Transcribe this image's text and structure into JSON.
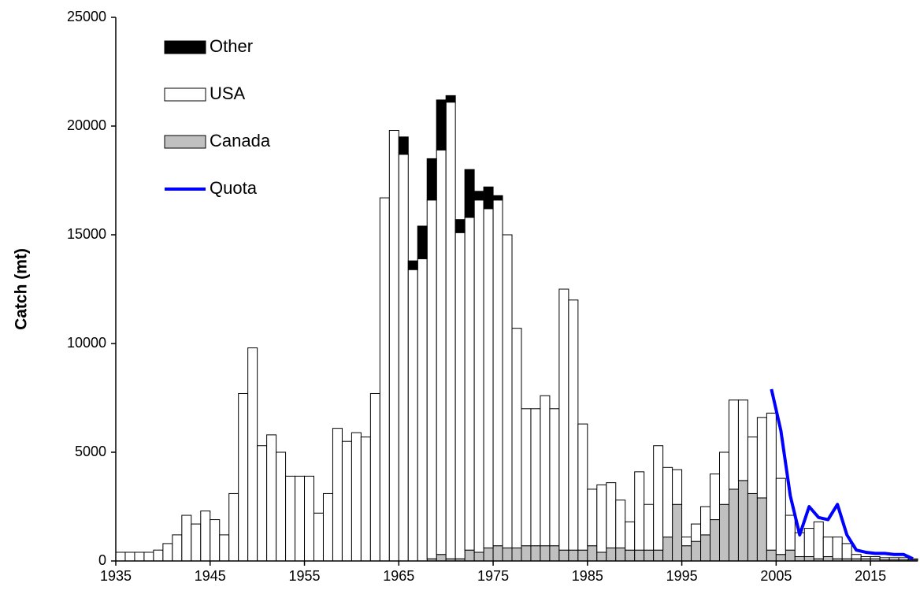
{
  "chart_data": {
    "type": "stacked-bar-line",
    "y_label": "Catch (mt)",
    "x": [
      1935,
      1936,
      1937,
      1938,
      1939,
      1940,
      1941,
      1942,
      1943,
      1944,
      1945,
      1946,
      1947,
      1948,
      1949,
      1950,
      1951,
      1952,
      1953,
      1954,
      1955,
      1956,
      1957,
      1958,
      1959,
      1960,
      1961,
      1962,
      1963,
      1964,
      1965,
      1966,
      1967,
      1968,
      1969,
      1970,
      1971,
      1972,
      1973,
      1974,
      1975,
      1976,
      1977,
      1978,
      1979,
      1980,
      1981,
      1982,
      1983,
      1984,
      1985,
      1986,
      1987,
      1988,
      1989,
      1990,
      1991,
      1992,
      1993,
      1994,
      1995,
      1996,
      1997,
      1998,
      1999,
      2000,
      2001,
      2002,
      2003,
      2004,
      2005,
      2006,
      2007,
      2008,
      2009,
      2010,
      2011,
      2012,
      2013,
      2014,
      2015,
      2016,
      2017,
      2018,
      2019
    ],
    "xlim": [
      1934.5,
      2019.5
    ],
    "xticks": [
      1935,
      1945,
      1955,
      1965,
      1975,
      1985,
      1995,
      2005,
      2015
    ],
    "ylim": [
      0,
      25000
    ],
    "yticks": [
      0,
      5000,
      10000,
      15000,
      20000,
      25000
    ],
    "legend": "top-left",
    "series": [
      {
        "name": "Canada",
        "color": "#c0c0c0",
        "kind": "bar",
        "values": [
          0,
          0,
          0,
          0,
          0,
          0,
          0,
          0,
          0,
          0,
          0,
          0,
          0,
          0,
          0,
          0,
          0,
          0,
          0,
          0,
          0,
          0,
          0,
          0,
          0,
          0,
          0,
          0,
          0,
          0,
          0,
          0,
          0,
          100,
          300,
          100,
          100,
          500,
          400,
          600,
          700,
          600,
          600,
          700,
          700,
          700,
          700,
          500,
          500,
          500,
          700,
          400,
          600,
          600,
          500,
          500,
          500,
          500,
          1100,
          2600,
          700,
          900,
          1200,
          1900,
          2600,
          3300,
          3700,
          3100,
          2900,
          500,
          300,
          500,
          200,
          200,
          100,
          200,
          100,
          100,
          100,
          100,
          100,
          50,
          50,
          50,
          50
        ]
      },
      {
        "name": "USA",
        "color": "#ffffff",
        "kind": "bar",
        "values": [
          400,
          400,
          400,
          400,
          500,
          800,
          1200,
          2100,
          1700,
          2300,
          1900,
          1200,
          3100,
          7700,
          9800,
          5300,
          5800,
          5000,
          3900,
          3900,
          3900,
          2200,
          3100,
          6100,
          5500,
          5900,
          5700,
          7700,
          16700,
          19800,
          18700,
          13400,
          13900,
          16500,
          18600,
          21000,
          15000,
          15300,
          16200,
          15600,
          15900,
          14400,
          10100,
          6300,
          6300,
          6900,
          6300,
          12000,
          11500,
          5800,
          2600,
          3100,
          3000,
          2200,
          1300,
          3600,
          2100,
          4800,
          3200,
          1600,
          400,
          800,
          1300,
          2100,
          2400,
          4100,
          3700,
          2600,
          3700,
          6300,
          3500,
          1600,
          1100,
          1300,
          1700,
          900,
          1000,
          700,
          200,
          100,
          100,
          100,
          100,
          100,
          50
        ]
      },
      {
        "name": "Other",
        "color": "#000000",
        "kind": "bar",
        "values": [
          0,
          0,
          0,
          0,
          0,
          0,
          0,
          0,
          0,
          0,
          0,
          0,
          0,
          0,
          0,
          0,
          0,
          0,
          0,
          0,
          0,
          0,
          0,
          0,
          0,
          0,
          0,
          0,
          0,
          0,
          800,
          400,
          1500,
          1900,
          2300,
          300,
          600,
          2200,
          400,
          1000,
          200,
          0,
          0,
          0,
          0,
          0,
          0,
          0,
          0,
          0,
          0,
          0,
          0,
          0,
          0,
          0,
          0,
          0,
          0,
          0,
          0,
          0,
          0,
          0,
          0,
          0,
          0,
          0,
          0,
          0,
          0,
          0,
          0,
          0,
          0,
          0,
          0,
          0,
          0,
          0,
          0,
          0,
          0,
          0,
          0
        ]
      },
      {
        "name": "Quota",
        "color": "#0000ff",
        "kind": "line",
        "values": [
          null,
          null,
          null,
          null,
          null,
          null,
          null,
          null,
          null,
          null,
          null,
          null,
          null,
          null,
          null,
          null,
          null,
          null,
          null,
          null,
          null,
          null,
          null,
          null,
          null,
          null,
          null,
          null,
          null,
          null,
          null,
          null,
          null,
          null,
          null,
          null,
          null,
          null,
          null,
          null,
          null,
          null,
          null,
          null,
          null,
          null,
          null,
          null,
          null,
          null,
          null,
          null,
          null,
          null,
          null,
          null,
          null,
          null,
          null,
          null,
          null,
          null,
          null,
          null,
          null,
          null,
          null,
          null,
          null,
          7900,
          6000,
          3000,
          1200,
          2500,
          2000,
          1900,
          2600,
          1200,
          500,
          400,
          350,
          350,
          300,
          300,
          100
        ]
      }
    ]
  }
}
